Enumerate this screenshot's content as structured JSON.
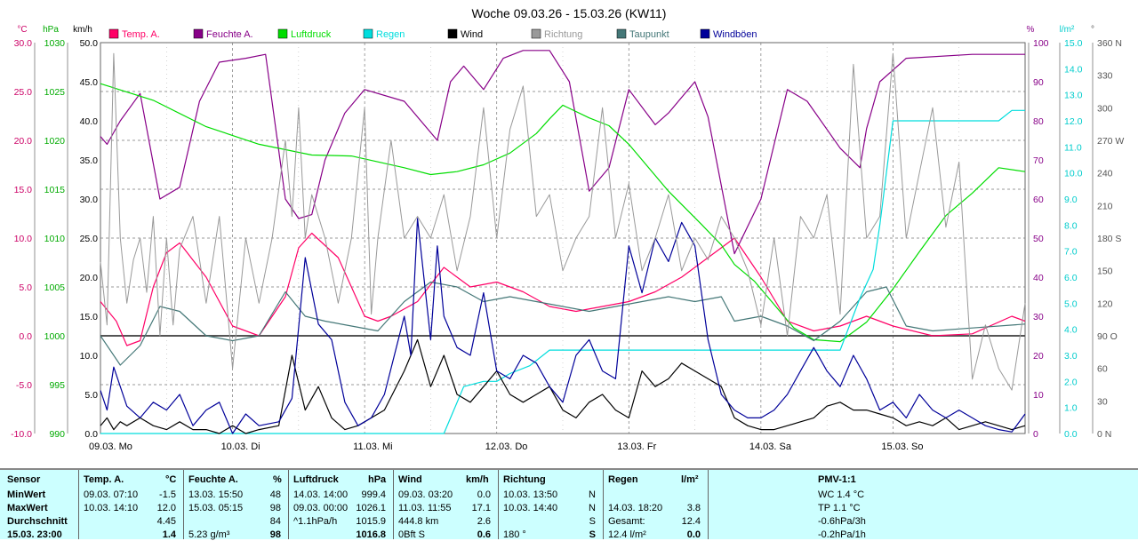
{
  "chart_data": {
    "type": "line",
    "title": "Woche 09.03.26 - 15.03.26 (KW11)",
    "x_ticks": [
      "09.03. Mo",
      "10.03. Di",
      "11.03. Mi",
      "12.03. Do",
      "13.03. Fr",
      "14.03. Sa",
      "15.03. So"
    ],
    "axes": {
      "temp_c": {
        "unit": "°C",
        "range": [
          -10,
          30
        ],
        "ticks": [
          "30.0",
          "25.0",
          "20.0",
          "15.0",
          "10.0",
          "5.0",
          "0.0",
          "-5.0",
          "-10.0"
        ],
        "color": "#cc0066"
      },
      "pressure_hpa": {
        "unit": "hPa",
        "range": [
          990,
          1030
        ],
        "ticks": [
          "1030",
          "1025",
          "1020",
          "1015",
          "1010",
          "1005",
          "1000",
          "995",
          "990"
        ],
        "color": "#00aa00"
      },
      "wind_kmh": {
        "unit": "km/h",
        "range": [
          0,
          50
        ],
        "ticks": [
          "50.0",
          "45.0",
          "40.0",
          "35.0",
          "30.0",
          "25.0",
          "20.0",
          "15.0",
          "10.0",
          "5.0",
          "0.0"
        ],
        "color": "#000000"
      },
      "humidity_pct": {
        "unit": "%",
        "range": [
          0,
          100
        ],
        "ticks": [
          "100",
          "90",
          "80",
          "70",
          "60",
          "50",
          "40",
          "30",
          "20",
          "10",
          "0"
        ],
        "color": "#880088"
      },
      "rain_lm2": {
        "unit": "l/m²",
        "range": [
          0,
          15
        ],
        "ticks": [
          "15.0",
          "14.0",
          "13.0",
          "12.0",
          "11.0",
          "10.0",
          "9.0",
          "8.0",
          "7.0",
          "6.0",
          "5.0",
          "4.0",
          "3.0",
          "2.0",
          "1.0",
          "0.0"
        ],
        "color": "#00cccc"
      },
      "direction_deg": {
        "unit": "°",
        "range": [
          0,
          360
        ],
        "ticks": [
          "360 N",
          "330",
          "300",
          "270 W",
          "240",
          "210",
          "180 S",
          "150",
          "120",
          "90 O",
          "60",
          "30",
          "0 N"
        ],
        "color": "#555555"
      }
    },
    "legend": [
      {
        "name": "Temp. A.",
        "color": "#ff0066"
      },
      {
        "name": "Feuchte A.",
        "color": "#880088"
      },
      {
        "name": "Luftdruck",
        "color": "#00dd00"
      },
      {
        "name": "Regen",
        "color": "#00dddd"
      },
      {
        "name": "Wind",
        "color": "#000000"
      },
      {
        "name": "Richtung",
        "color": "#999999"
      },
      {
        "name": "Taupunkt",
        "color": "#447777"
      },
      {
        "name": "Windböen",
        "color": "#000099"
      }
    ],
    "series": [
      {
        "key": "temperature",
        "color": "#ff0066",
        "axis": "temp_c",
        "x": [
          0,
          0.12,
          0.2,
          0.3,
          0.4,
          0.5,
          0.6,
          0.8,
          1.0,
          1.2,
          1.4,
          1.5,
          1.6,
          1.8,
          2.0,
          2.1,
          2.2,
          2.4,
          2.6,
          2.8,
          3.0,
          3.2,
          3.4,
          3.6,
          3.8,
          4.0,
          4.2,
          4.4,
          4.6,
          4.8,
          5.0,
          5.2,
          5.4,
          5.6,
          5.8,
          6.0,
          6.3,
          6.6,
          6.9,
          7.0
        ],
        "values": [
          3.5,
          1.5,
          -1,
          -0.5,
          5,
          8.5,
          9.5,
          6,
          1,
          0,
          4,
          9,
          10.5,
          8,
          2,
          1.5,
          2,
          3.5,
          7,
          5,
          5.5,
          4.5,
          3,
          2.5,
          3,
          3.5,
          4.5,
          6,
          8,
          10,
          6,
          1.5,
          0.5,
          1,
          2,
          1,
          0,
          0.2,
          2,
          1.5
        ]
      },
      {
        "key": "humidity",
        "color": "#880088",
        "axis": "humidity_pct",
        "x": [
          0,
          0.05,
          0.15,
          0.3,
          0.45,
          0.6,
          0.75,
          0.9,
          1.1,
          1.25,
          1.4,
          1.5,
          1.6,
          1.7,
          1.85,
          2.0,
          2.3,
          2.55,
          2.65,
          2.75,
          2.9,
          3.05,
          3.2,
          3.4,
          3.55,
          3.7,
          3.85,
          4.0,
          4.2,
          4.3,
          4.5,
          4.6,
          4.8,
          5.0,
          5.2,
          5.35,
          5.6,
          5.75,
          5.8,
          5.9,
          6.1,
          6.6,
          7.0
        ],
        "values": [
          76,
          74,
          80,
          87,
          60,
          63,
          85,
          95,
          96,
          97,
          60,
          55,
          56,
          70,
          82,
          88,
          85,
          75,
          90,
          94,
          88,
          96,
          98,
          98,
          90,
          62,
          68,
          88,
          79,
          82,
          90,
          81,
          46,
          60,
          88,
          85,
          73,
          68,
          78,
          90,
          96,
          97,
          97
        ]
      },
      {
        "key": "pressure",
        "color": "#00dd00",
        "axis": "pressure_hpa",
        "x": [
          0,
          0.4,
          0.8,
          1.2,
          1.6,
          1.9,
          2.3,
          2.5,
          2.7,
          2.9,
          3.1,
          3.3,
          3.4,
          3.5,
          3.7,
          3.85,
          4.0,
          4.3,
          4.55,
          4.7,
          4.8,
          4.95,
          5.1,
          5.25,
          5.4,
          5.6,
          5.8,
          6.0,
          6.2,
          6.4,
          6.6,
          6.8,
          7.0
        ],
        "values": [
          1025.8,
          1024.1,
          1021.4,
          1019.6,
          1018.5,
          1018.4,
          1017.2,
          1016.5,
          1016.8,
          1017.5,
          1018.7,
          1020.7,
          1022.2,
          1023.6,
          1022.3,
          1021.5,
          1019.6,
          1014.8,
          1011.4,
          1009.3,
          1007.3,
          1005.6,
          1003.2,
          1000.8,
          999.6,
          999.4,
          1001.4,
          1004.8,
          1008.6,
          1012.3,
          1014.6,
          1017.2,
          1016.8
        ]
      },
      {
        "key": "dewpoint",
        "color": "#447777",
        "axis": "temp_c",
        "x": [
          0,
          0.15,
          0.3,
          0.45,
          0.6,
          0.8,
          1.0,
          1.2,
          1.4,
          1.55,
          1.7,
          1.9,
          2.1,
          2.3,
          2.5,
          2.7,
          2.9,
          3.1,
          3.3,
          3.5,
          3.7,
          3.9,
          4.1,
          4.3,
          4.5,
          4.7,
          4.8,
          5.0,
          5.2,
          5.4,
          5.6,
          5.8,
          5.95,
          6.1,
          6.3,
          6.6,
          7.0
        ],
        "values": [
          0,
          -3,
          -1,
          3,
          2.5,
          0,
          -0.5,
          0,
          4.5,
          2,
          1.5,
          1,
          0.5,
          3.5,
          5.5,
          5,
          3.5,
          4,
          3.5,
          3,
          2.5,
          3,
          3.5,
          4,
          3.5,
          4,
          1.5,
          2,
          1,
          -0.5,
          1.5,
          4.5,
          5,
          1,
          0.5,
          0.8,
          1.2
        ]
      },
      {
        "key": "rain",
        "color": "#00dddd",
        "axis": "rain_lm2",
        "x": [
          0,
          2.55,
          2.6,
          2.75,
          2.9,
          3.0,
          3.1,
          3.25,
          3.4,
          3.55,
          4.0,
          4.5,
          4.9,
          5.1,
          5.3,
          5.5,
          5.6,
          5.75,
          5.85,
          5.9,
          6.0,
          6.2,
          6.6,
          6.8,
          6.9,
          7.0
        ],
        "values": [
          0,
          0,
          0,
          1.8,
          2.0,
          2.0,
          2.3,
          2.6,
          3.2,
          3.2,
          3.2,
          3.2,
          3.2,
          3.2,
          3.2,
          3.2,
          3.2,
          5.2,
          6.3,
          8.0,
          12.0,
          12.0,
          12.0,
          12.0,
          12.4,
          12.4
        ]
      },
      {
        "key": "wind",
        "color": "#000000",
        "axis": "wind_kmh",
        "x": [
          0,
          0.05,
          0.1,
          0.15,
          0.2,
          0.3,
          0.4,
          0.5,
          0.6,
          0.7,
          0.8,
          0.9,
          1.0,
          1.1,
          1.2,
          1.35,
          1.45,
          1.55,
          1.65,
          1.75,
          1.85,
          1.95,
          2.05,
          2.15,
          2.3,
          2.4,
          2.5,
          2.6,
          2.7,
          2.8,
          2.9,
          3.0,
          3.1,
          3.2,
          3.3,
          3.4,
          3.5,
          3.6,
          3.7,
          3.8,
          3.9,
          4.0,
          4.1,
          4.2,
          4.3,
          4.4,
          4.5,
          4.6,
          4.7,
          4.8,
          4.9,
          5.0,
          5.1,
          5.2,
          5.3,
          5.4,
          5.5,
          5.6,
          5.7,
          5.8,
          5.9,
          6.0,
          6.1,
          6.2,
          6.3,
          6.4,
          6.5,
          6.6,
          6.7,
          6.8,
          6.9,
          7.0
        ],
        "values": [
          1,
          2,
          0.5,
          1.5,
          1,
          2,
          1,
          0.5,
          1.5,
          0.5,
          0.5,
          0,
          1,
          0,
          0.5,
          1,
          10,
          3,
          6,
          2,
          0.5,
          1,
          2,
          3,
          8,
          12,
          6,
          10,
          5,
          4,
          6,
          8,
          5,
          4,
          5,
          6,
          3,
          2,
          4,
          5,
          3,
          2,
          8,
          6,
          7,
          9,
          8,
          7,
          6,
          2,
          1,
          0.5,
          0.5,
          1,
          1.5,
          2,
          3.5,
          4,
          3,
          3,
          2.5,
          2,
          1,
          1.5,
          1,
          2,
          0.5,
          1,
          1.5,
          1,
          0.5,
          1
        ]
      },
      {
        "key": "gusts",
        "color": "#000099",
        "axis": "wind_kmh",
        "x": [
          0,
          0.05,
          0.1,
          0.2,
          0.3,
          0.4,
          0.5,
          0.6,
          0.7,
          0.8,
          0.9,
          1.0,
          1.1,
          1.2,
          1.35,
          1.45,
          1.55,
          1.65,
          1.75,
          1.85,
          1.95,
          2.05,
          2.15,
          2.3,
          2.35,
          2.4,
          2.5,
          2.55,
          2.6,
          2.7,
          2.8,
          2.9,
          3.0,
          3.1,
          3.2,
          3.3,
          3.4,
          3.5,
          3.6,
          3.7,
          3.8,
          3.9,
          4.0,
          4.1,
          4.2,
          4.3,
          4.4,
          4.5,
          4.6,
          4.7,
          4.8,
          4.9,
          5.0,
          5.1,
          5.2,
          5.3,
          5.4,
          5.5,
          5.6,
          5.7,
          5.8,
          5.9,
          6.0,
          6.1,
          6.2,
          6.3,
          6.4,
          6.5,
          6.6,
          6.7,
          6.8,
          6.9,
          7.0
        ],
        "values": [
          5.5,
          3,
          8.5,
          3.5,
          2,
          4,
          3,
          5,
          1,
          3,
          4,
          0,
          2.5,
          1,
          1.5,
          4.5,
          22.5,
          14,
          12,
          4,
          1,
          2,
          5,
          15,
          10,
          27.5,
          12,
          24,
          15,
          11,
          10,
          18,
          8,
          7,
          10,
          9,
          6,
          4,
          10,
          12,
          8,
          7,
          24,
          18,
          25,
          22,
          27,
          24,
          12,
          5,
          3,
          2,
          2,
          3,
          5,
          8,
          11,
          8,
          6,
          10,
          7,
          3,
          4,
          2,
          5,
          3,
          2,
          3,
          2,
          1,
          0.5,
          0.2,
          2.5
        ]
      },
      {
        "key": "direction",
        "color": "#999999",
        "axis": "direction_deg",
        "x": [
          0,
          0.05,
          0.1,
          0.15,
          0.2,
          0.25,
          0.3,
          0.35,
          0.4,
          0.45,
          0.5,
          0.55,
          0.6,
          0.7,
          0.8,
          0.9,
          1.0,
          1.1,
          1.2,
          1.3,
          1.4,
          1.45,
          1.5,
          1.55,
          1.6,
          1.7,
          1.8,
          1.9,
          2.0,
          2.05,
          2.1,
          2.2,
          2.3,
          2.4,
          2.5,
          2.6,
          2.7,
          2.8,
          2.9,
          3.0,
          3.1,
          3.2,
          3.3,
          3.4,
          3.5,
          3.6,
          3.7,
          3.8,
          3.9,
          4.0,
          4.1,
          4.2,
          4.3,
          4.4,
          4.5,
          4.6,
          4.7,
          4.8,
          4.9,
          5.0,
          5.1,
          5.2,
          5.3,
          5.4,
          5.5,
          5.6,
          5.7,
          5.8,
          5.9,
          6.0,
          6.1,
          6.2,
          6.3,
          6.4,
          6.5,
          6.6,
          6.7,
          6.8,
          6.9,
          7.0
        ],
        "values": [
          158,
          100,
          350,
          180,
          120,
          160,
          180,
          130,
          200,
          90,
          180,
          100,
          170,
          200,
          120,
          200,
          60,
          180,
          120,
          180,
          270,
          200,
          300,
          180,
          220,
          180,
          120,
          180,
          300,
          110,
          180,
          270,
          180,
          200,
          180,
          220,
          150,
          200,
          300,
          180,
          280,
          320,
          200,
          220,
          150,
          180,
          200,
          300,
          180,
          230,
          150,
          180,
          220,
          150,
          180,
          160,
          200,
          180,
          150,
          100,
          180,
          90,
          200,
          180,
          220,
          110,
          340,
          180,
          200,
          350,
          180,
          240,
          300,
          190,
          250,
          50,
          100,
          60,
          40,
          120
        ]
      }
    ]
  },
  "stats": {
    "headers": {
      "sensor": "Sensor",
      "temp": "Temp. A.",
      "temp_unit": "°C",
      "hum": "Feuchte A.",
      "hum_unit": "%",
      "pres": "Luftdruck",
      "pres_unit": "hPa",
      "wind": "Wind",
      "wind_unit": "km/h",
      "dir": "Richtung",
      "rain": "Regen",
      "rain_unit": "l/m²",
      "pmv": "PMV-1:1"
    },
    "rows": [
      {
        "label": "MinWert",
        "temp_t": "09.03.  07:10",
        "temp_v": "-1.5",
        "hum_t": "13.03.  15:50",
        "hum_v": "48",
        "pres_t": "14.03.  14:00",
        "pres_v": "999.4",
        "wind_t": "09.03.  03:20",
        "wind_v": "0.0",
        "dir_t": "10.03.  13:50",
        "dir_v": "N",
        "rain_t": "",
        "rain_v": "",
        "pmv": "WC 1.4 °C"
      },
      {
        "label": "MaxWert",
        "temp_t": "10.03.  14:10",
        "temp_v": "12.0",
        "hum_t": "15.03.  05:15",
        "hum_v": "98",
        "pres_t": "09.03.  00:00",
        "pres_v": "1026.1",
        "wind_t": "11.03.  11:55",
        "wind_v": "17.1",
        "dir_t": "10.03.  14:40",
        "dir_v": "N",
        "rain_t": "14.03.  18:20",
        "rain_v": "3.8",
        "pmv": "TP 1.1 °C"
      },
      {
        "label": "Durchschnitt",
        "temp_t": "",
        "temp_v": "4.45",
        "hum_t": "",
        "hum_v": "84",
        "pres_t": "^1.1hPa/h",
        "pres_v": "1015.9",
        "wind_t": "444.8 km",
        "wind_v": "2.6",
        "dir_t": "",
        "dir_v": "S",
        "rain_t": "Gesamt:",
        "rain_v": "12.4",
        "pmv": "-0.6hPa/3h"
      },
      {
        "label": "15.03. 23:00",
        "temp_t": "",
        "temp_v": "1.4",
        "hum_t": "5.23 g/m³",
        "hum_v": "98",
        "pres_t": "",
        "pres_v": "1016.8",
        "wind_t": "0Bft S",
        "wind_v": "0.6",
        "dir_t": "180 °",
        "dir_v": "S",
        "rain_t": "12.4 l/m²",
        "rain_v": "0.0",
        "pmv": "-0.2hPa/1h"
      }
    ]
  }
}
